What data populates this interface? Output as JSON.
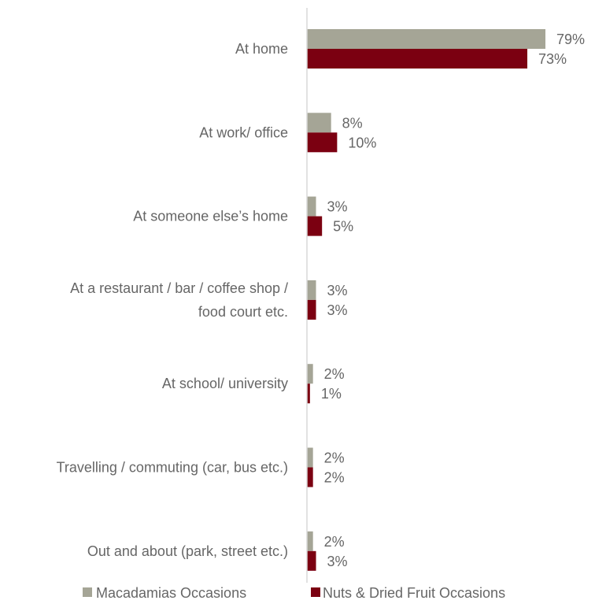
{
  "chart_data": {
    "type": "bar",
    "orientation": "horizontal",
    "categories": [
      [
        "At home"
      ],
      [
        "At work/ office"
      ],
      [
        "At someone else’s home"
      ],
      [
        "At a restaurant / bar / coffee shop /",
        "food court etc."
      ],
      [
        "At school/ university"
      ],
      [
        "Travelling / commuting (car, bus etc.)"
      ],
      [
        "Out and about (park, street etc.)"
      ]
    ],
    "series": [
      {
        "name": "Macadamias Occasions",
        "color": "#a5a596",
        "values": [
          79,
          8,
          3,
          3,
          2,
          2,
          2
        ],
        "labels": [
          "79%",
          "8%",
          "3%",
          "3%",
          "2%",
          "2%",
          "2%"
        ]
      },
      {
        "name": "Nuts & Dried Fruit Occasions",
        "color": "#7b0011",
        "values": [
          73,
          10,
          5,
          3,
          1,
          2,
          3
        ],
        "labels": [
          "73%",
          "10%",
          "5%",
          "3%",
          "1%",
          "2%",
          "3%"
        ]
      }
    ],
    "xlim": [
      0,
      100
    ],
    "axis_color": "#d9d9d9",
    "grid": false,
    "legend": "bottom"
  }
}
